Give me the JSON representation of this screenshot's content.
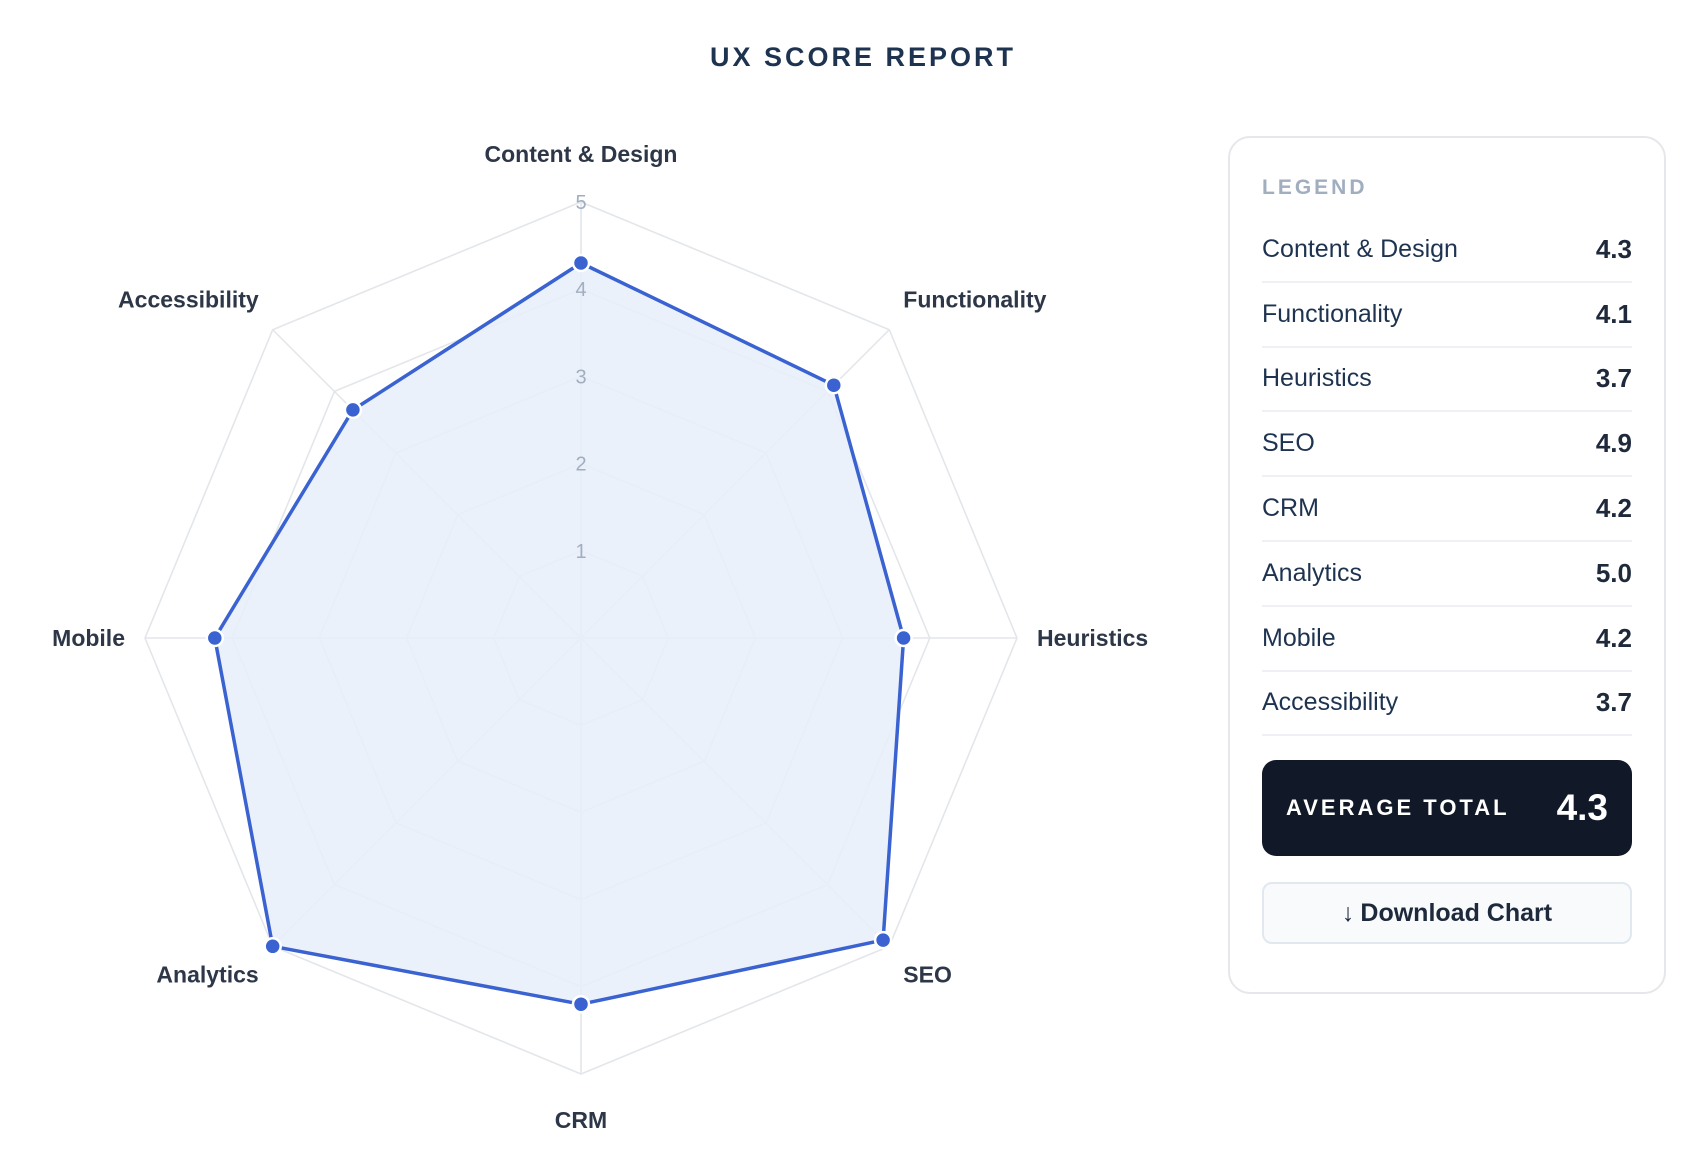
{
  "title": "UX SCORE REPORT",
  "colors": {
    "series_stroke": "#3a63d1",
    "series_fill": "#e8eefa",
    "grid": "#e3e6ea",
    "point": "#3a63d1",
    "average_box": "#111827"
  },
  "chart_data": {
    "type": "radar",
    "categories": [
      "Content & Design",
      "Functionality",
      "Heuristics",
      "SEO",
      "CRM",
      "Analytics",
      "Mobile",
      "Accessibility"
    ],
    "series": [
      {
        "values": [
          4.3,
          4.1,
          3.7,
          4.9,
          4.2,
          5.0,
          4.2,
          3.7
        ]
      }
    ],
    "range": [
      0,
      5
    ],
    "ticks": [
      "1",
      "2",
      "3",
      "4",
      "5"
    ],
    "grid": true
  },
  "legend": {
    "title": "LEGEND",
    "items": [
      {
        "label": "Content & Design",
        "value": "4.3"
      },
      {
        "label": "Functionality",
        "value": "4.1"
      },
      {
        "label": "Heuristics",
        "value": "3.7"
      },
      {
        "label": "SEO",
        "value": "4.9"
      },
      {
        "label": "CRM",
        "value": "4.2"
      },
      {
        "label": "Analytics",
        "value": "5.0"
      },
      {
        "label": "Mobile",
        "value": "4.2"
      },
      {
        "label": "Accessibility",
        "value": "3.7"
      }
    ],
    "average_label": "AVERAGE TOTAL",
    "average_value": "4.3",
    "download_label": "Download Chart",
    "download_icon": "arrow-down-icon"
  }
}
